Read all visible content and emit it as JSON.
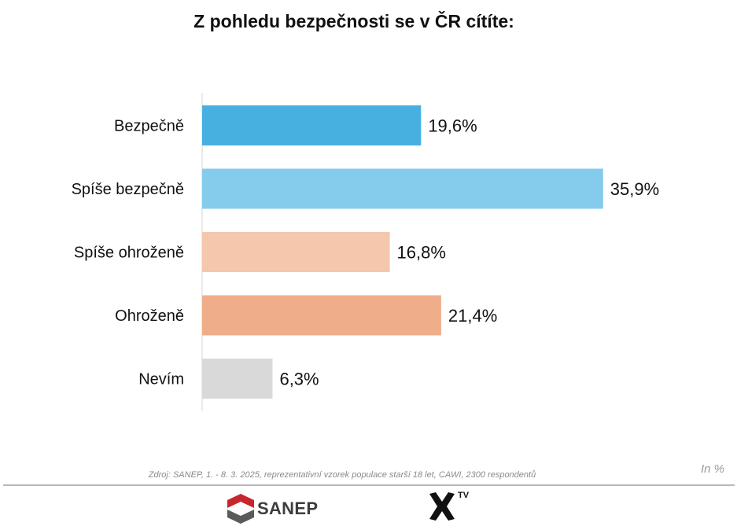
{
  "chart_data": {
    "type": "bar",
    "orientation": "horizontal",
    "title": "Z pohledu bezpečnosti se v ČR cítíte:",
    "categories": [
      "Bezpečně",
      "Spíše bezpečně",
      "Spíše ohroženě",
      "Ohroženě",
      "Nevím"
    ],
    "values": [
      19.6,
      35.9,
      16.8,
      21.4,
      6.3
    ],
    "value_labels": [
      "19,6%",
      "35,9%",
      "16,8%",
      "21,4%",
      "6,3%"
    ],
    "colors": [
      "#47b0e0",
      "#84cbec",
      "#f5c7ad",
      "#f0ad89",
      "#d9d9d9"
    ],
    "xlim": [
      0,
      40
    ],
    "grid": false,
    "legend": "none"
  },
  "source_note": "Zdroj: SANEP, 1. - 8. 3. 2025, reprezentativní vzorek populace starší 18 let, CAWI, 2300 respondentů",
  "unit_note": "In %",
  "logos": {
    "sanep": "SANEP",
    "sanep_icon": "sanep-logo-icon",
    "xtv_superscript": "TV",
    "xtv_icon": "x-mark-icon"
  }
}
